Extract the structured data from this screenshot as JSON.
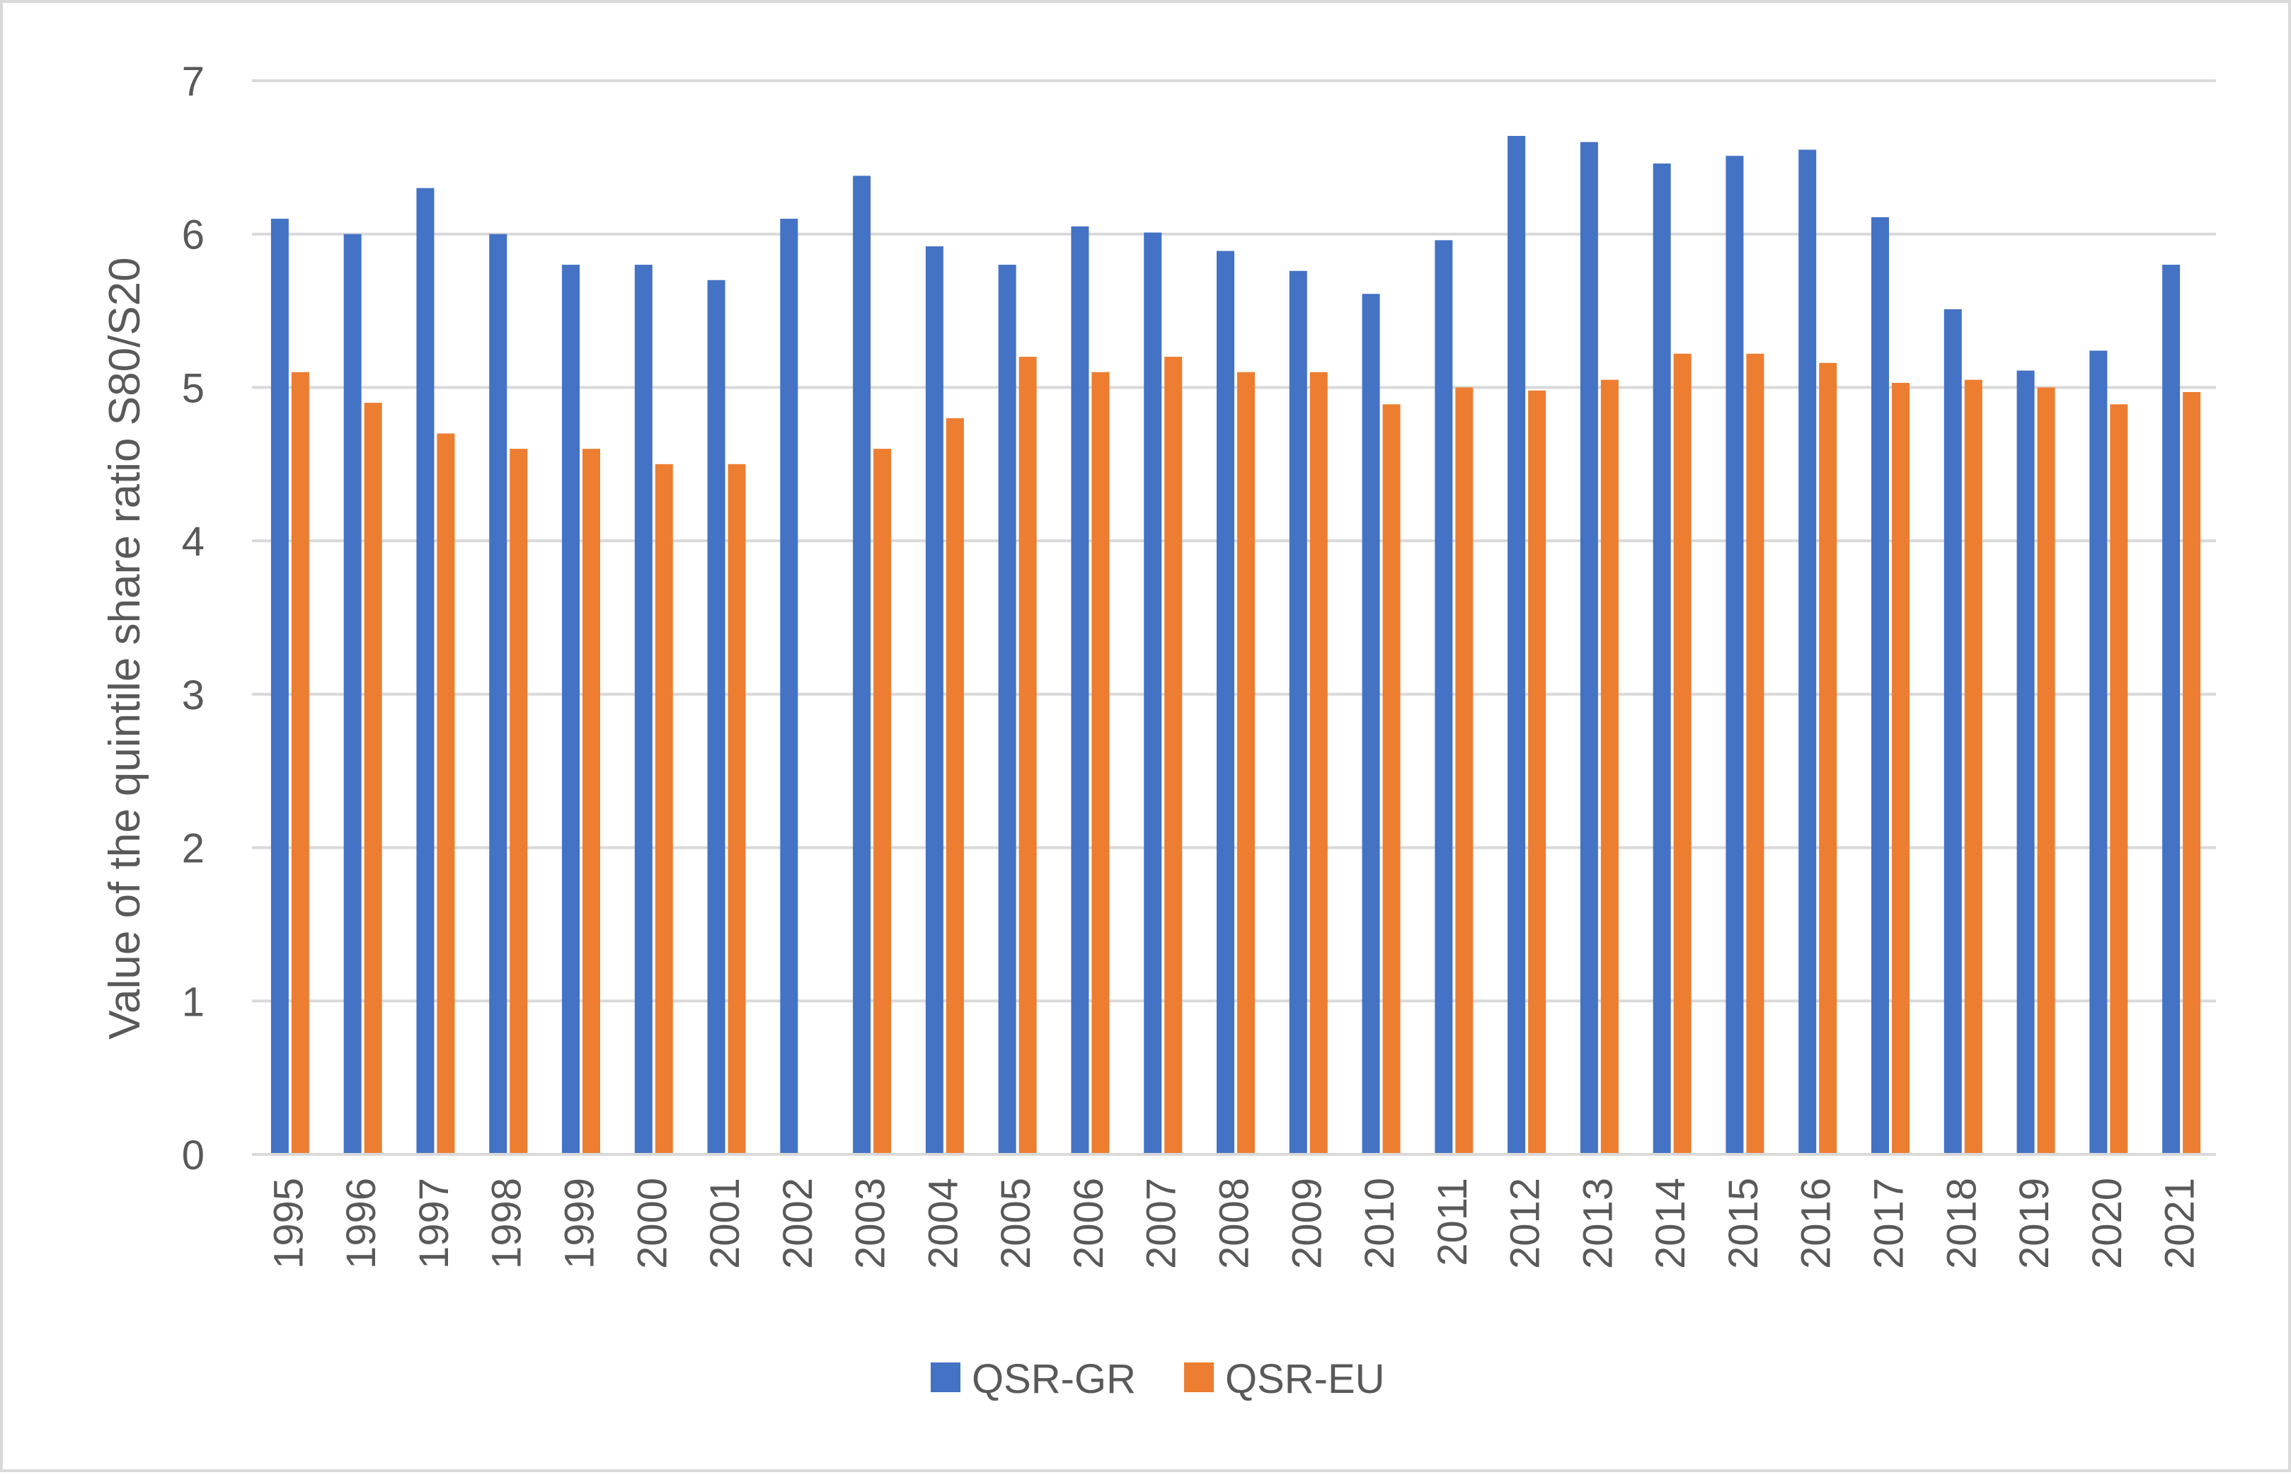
{
  "chart_data": {
    "type": "bar",
    "title": "",
    "xlabel": "",
    "ylabel": "Value of the quintile share ratio S80/S20",
    "ylim": [
      0,
      7
    ],
    "yticks": [
      "0",
      "1",
      "2",
      "3",
      "4",
      "5",
      "6",
      "7"
    ],
    "grid": "horizontal",
    "legend_position": "bottom",
    "categories": [
      "1995",
      "1996",
      "1997",
      "1998",
      "1999",
      "2000",
      "2001",
      "2002",
      "2003",
      "2004",
      "2005",
      "2006",
      "2007",
      "2008",
      "2009",
      "2010",
      "2011",
      "2012",
      "2013",
      "2014",
      "2015",
      "2016",
      "2017",
      "2018",
      "2019",
      "2020",
      "2021"
    ],
    "series": [
      {
        "name": "QSR-GR",
        "color": "#4472c4",
        "values": [
          6.1,
          6.0,
          6.3,
          6.0,
          5.8,
          5.8,
          5.7,
          6.1,
          6.38,
          5.92,
          5.8,
          6.05,
          6.01,
          5.89,
          5.76,
          5.61,
          5.96,
          6.64,
          6.6,
          6.46,
          6.51,
          6.55,
          6.11,
          5.51,
          5.11,
          5.24,
          5.8
        ]
      },
      {
        "name": "QSR-EU",
        "color": "#ed7d31",
        "values": [
          5.1,
          4.9,
          4.7,
          4.6,
          4.6,
          4.5,
          4.5,
          null,
          4.6,
          4.8,
          5.2,
          5.1,
          5.2,
          5.1,
          5.1,
          4.89,
          5.0,
          4.98,
          5.05,
          5.22,
          5.22,
          5.16,
          5.03,
          5.05,
          5.0,
          4.89,
          4.97
        ]
      }
    ]
  }
}
